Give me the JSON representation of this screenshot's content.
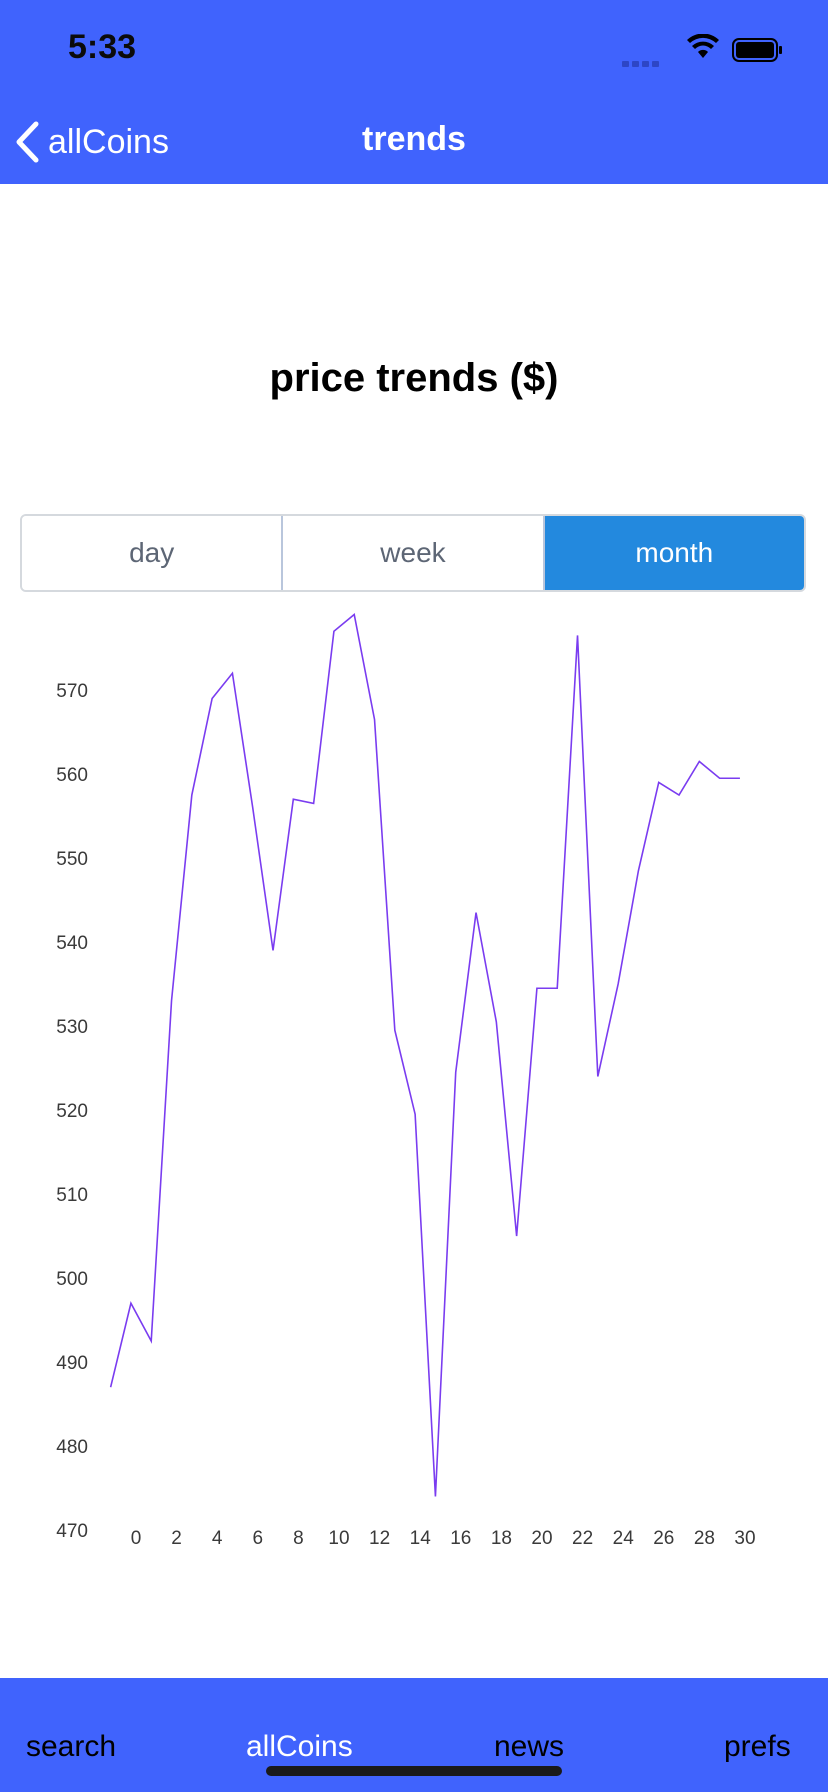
{
  "status_bar": {
    "time": "5:33"
  },
  "nav": {
    "back_label": "allCoins",
    "title": "trends"
  },
  "page": {
    "heading": "price trends ($)"
  },
  "segments": [
    {
      "label": "day",
      "selected": false
    },
    {
      "label": "week",
      "selected": false
    },
    {
      "label": "month",
      "selected": true
    }
  ],
  "chart_data": {
    "type": "line",
    "x": [
      0,
      1,
      2,
      3,
      4,
      5,
      6,
      7,
      8,
      9,
      10,
      11,
      12,
      13,
      14,
      15,
      16,
      17,
      18,
      19,
      20,
      21,
      22,
      23,
      24,
      25,
      26,
      27,
      28,
      29,
      30,
      31
    ],
    "series": [
      {
        "values": [
          487,
          497,
          492.5,
          533,
          557.5,
          569,
          572,
          556,
          539,
          557,
          556.5,
          577,
          579,
          566.5,
          529.5,
          519.5,
          474,
          524.5,
          543.5,
          530.5,
          505,
          534.5,
          534.5,
          576.5,
          524,
          535,
          548.5,
          559,
          557.5,
          561.5,
          559.5,
          559.5
        ]
      }
    ],
    "xticks": [
      0,
      2,
      4,
      6,
      8,
      10,
      12,
      14,
      16,
      18,
      20,
      22,
      24,
      26,
      28,
      30
    ],
    "yticks": [
      470,
      480,
      490,
      500,
      510,
      520,
      530,
      540,
      550,
      560,
      570
    ],
    "ylim": [
      470,
      580
    ],
    "line_color": "#7a3cf0",
    "grid": false
  },
  "tabbar": {
    "tabs": [
      {
        "label": "search"
      },
      {
        "label": "allCoins"
      },
      {
        "label": "news"
      },
      {
        "label": "prefs"
      }
    ]
  },
  "colors": {
    "brand_blue": "#4063fd",
    "selected_segment": "#2389de"
  }
}
